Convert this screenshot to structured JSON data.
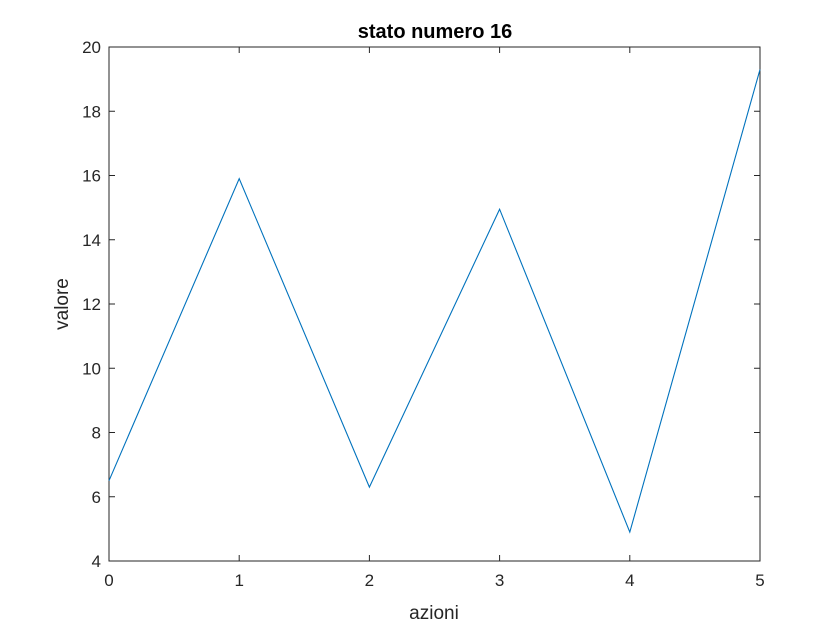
{
  "chart_data": {
    "type": "line",
    "title": "stato numero 16",
    "xlabel": "azioni",
    "ylabel": "valore",
    "xlim": [
      0,
      5
    ],
    "ylim": [
      4,
      20
    ],
    "xticks": [
      "0",
      "1",
      "2",
      "3",
      "4",
      "5"
    ],
    "yticks": [
      "4",
      "6",
      "8",
      "10",
      "12",
      "14",
      "16",
      "18",
      "20"
    ],
    "grid": false,
    "series": [
      {
        "x": [
          0,
          1,
          2,
          3,
          4,
          5
        ],
        "values": [
          6.5,
          15.9,
          6.3,
          14.95,
          4.9,
          19.3
        ],
        "color": "#0072BD"
      }
    ]
  }
}
